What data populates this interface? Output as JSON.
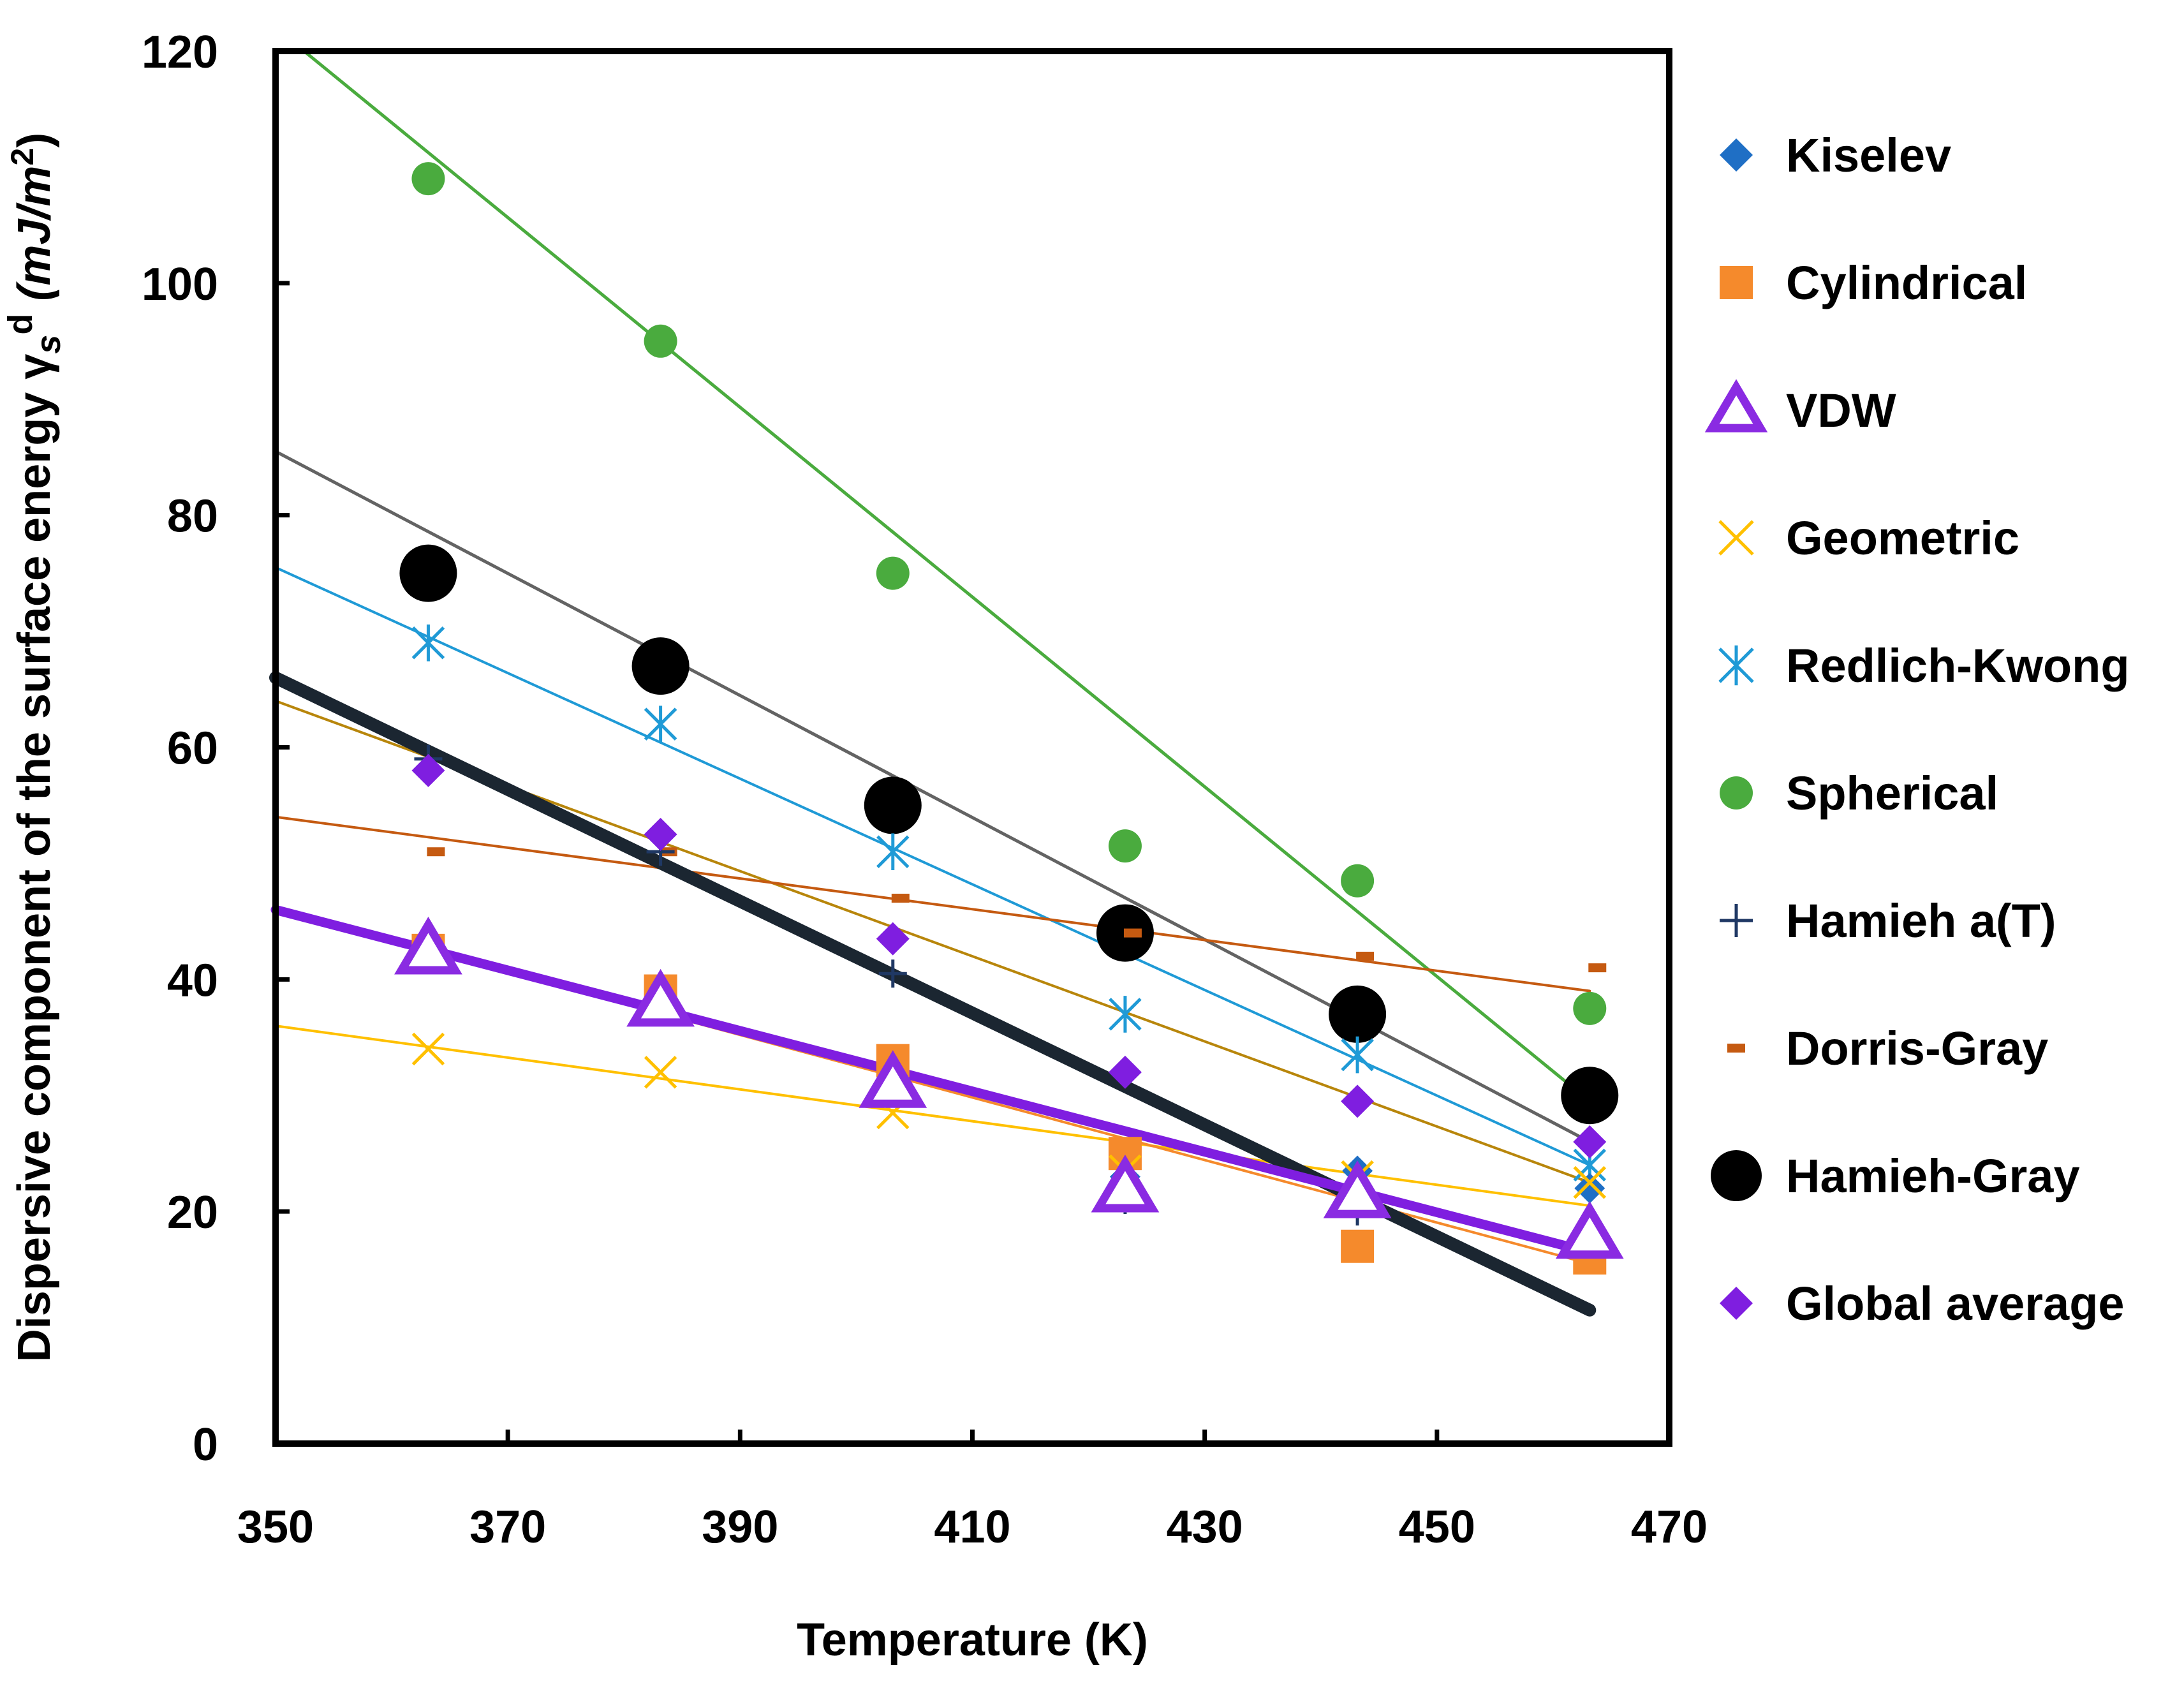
{
  "chart_data": {
    "type": "scatter",
    "xlabel": "Temperature (K)",
    "ylabel_text": "Dispersive component of the surface energy γ",
    "ylabel_sub": "s",
    "ylabel_sup": "d",
    "ylabel_units": "(mJ/m",
    "ylabel_units_sup": "2",
    "ylabel_units_close": ")",
    "xlim": [
      350,
      470
    ],
    "ylim": [
      0,
      120
    ],
    "xticks": [
      350,
      370,
      390,
      410,
      430,
      450,
      470
    ],
    "yticks": [
      0,
      20,
      40,
      60,
      80,
      100,
      120
    ],
    "x": [
      363.15,
      383.15,
      403.15,
      423.15,
      443.15,
      463.15
    ],
    "series": [
      {
        "name": "Kiselev",
        "marker": "diamond",
        "color": "#1f6fc5",
        "values": [
          42.0,
          38.0,
          31.0,
          23.0,
          23.5,
          22.0
        ]
      },
      {
        "name": "Cylindrical",
        "marker": "square",
        "color": "#f58a2c",
        "values": [
          42.5,
          39.0,
          33.0,
          25.0,
          17.0,
          16.0
        ]
      },
      {
        "name": "VDW",
        "marker": "triangle",
        "color": "#8a2be2",
        "values": [
          42.5,
          38.0,
          31.0,
          22.0,
          21.5,
          18.0
        ]
      },
      {
        "name": "Geometric",
        "marker": "x",
        "color": "#ffc000",
        "values": [
          34.0,
          32.0,
          28.5,
          23.5,
          23.0,
          22.5
        ]
      },
      {
        "name": "Redlich-Kwong",
        "marker": "asterisk",
        "color": "#1f9ad6",
        "values": [
          69.0,
          62.0,
          51.0,
          37.0,
          33.5,
          24.0
        ]
      },
      {
        "name": "Spherical",
        "marker": "circle",
        "color": "#4aab3e",
        "values": [
          109.0,
          95.0,
          75.0,
          51.5,
          48.5,
          37.5
        ]
      },
      {
        "name": "Hamieh a(T)",
        "marker": "plus",
        "color": "#1f3864",
        "values": [
          59.0,
          51.0,
          40.5,
          21.0,
          20.0,
          18.5
        ]
      },
      {
        "name": "Dorris-Gray",
        "marker": "dash",
        "color": "#c55a11",
        "values": [
          51.0,
          51.0,
          47.0,
          44.0,
          42.0,
          41.0
        ]
      },
      {
        "name": "Hamieh-Gray",
        "marker": "bigcircle",
        "color": "#000000",
        "values": [
          75.0,
          67.0,
          55.0,
          44.0,
          37.0,
          30.0
        ]
      },
      {
        "name": "Global average",
        "marker": "diamond",
        "color": "#7f1ee0",
        "values": [
          58.0,
          52.5,
          43.5,
          32.0,
          29.5,
          26.0
        ]
      }
    ],
    "trendlines": [
      {
        "name": "Spherical fit",
        "color": "#4aab3e",
        "x": [
          350,
          463.15
        ],
        "y": [
          122.0,
          29.5
        ]
      },
      {
        "name": "Hamieh-Gray fit",
        "color": "#636363",
        "x": [
          350,
          463.15
        ],
        "y": [
          85.5,
          26.0
        ]
      },
      {
        "name": "Redlich-Kwong fit",
        "color": "#1f9ad6",
        "x": [
          350,
          463.15
        ],
        "y": [
          75.5,
          24.0
        ]
      },
      {
        "name": "Hamieh a(T) fit",
        "color": "#1b2631",
        "x": [
          350,
          463.15
        ],
        "y": [
          66.0,
          11.5
        ]
      },
      {
        "name": "Global average fit",
        "color": "#b8860b",
        "x": [
          350,
          463.15
        ],
        "y": [
          64.0,
          22.5
        ]
      },
      {
        "name": "Dorris-Gray fit",
        "color": "#c55a11",
        "x": [
          350,
          463.15
        ],
        "y": [
          54.0,
          39.0
        ]
      },
      {
        "name": "VDW fit",
        "color": "#7f1ee0",
        "x": [
          350,
          463.15
        ],
        "y": [
          46.0,
          16.5
        ]
      },
      {
        "name": "Cylindrical fit",
        "color": "#f58a2c",
        "x": [
          350,
          463.15
        ],
        "y": [
          46.0,
          15.5
        ]
      },
      {
        "name": "Geometric fit",
        "color": "#ffc000",
        "x": [
          350,
          463.15
        ],
        "y": [
          36.0,
          20.5
        ]
      }
    ]
  }
}
